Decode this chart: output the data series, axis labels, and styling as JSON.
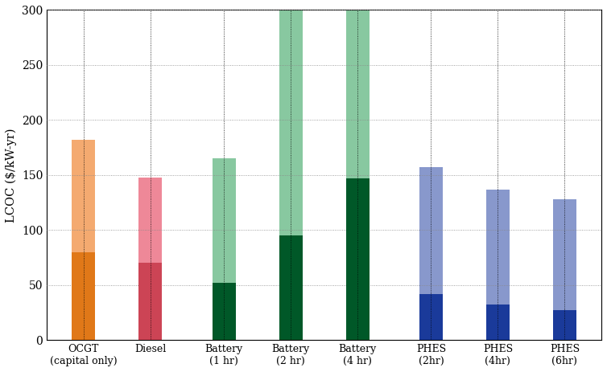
{
  "categories": [
    "OCGT\n(capital only)",
    "Diesel",
    "Battery\n(1 hr)",
    "Battery\n(2 hr)",
    "Battery\n(4 hr)",
    "PHES\n(2hr)",
    "PHES\n(4hr)",
    "PHES\n(6hr)"
  ],
  "dark_values": [
    80,
    70,
    52,
    95,
    147,
    42,
    32,
    27
  ],
  "light_values": [
    182,
    148,
    165,
    300,
    300,
    157,
    137,
    128
  ],
  "dark_colors": [
    "#e07818",
    "#cc4455",
    "#005828",
    "#005828",
    "#005828",
    "#1a3a9a",
    "#1a3a9a",
    "#1a3a9a"
  ],
  "light_colors": [
    "#f4aa70",
    "#ee8898",
    "#88c8a0",
    "#88c8a0",
    "#88c8a0",
    "#8898cc",
    "#8898cc",
    "#8898cc"
  ],
  "ylabel": "LCOC ($/kW-yr)",
  "ylim": [
    0,
    300
  ],
  "yticks": [
    0,
    50,
    100,
    150,
    200,
    250,
    300
  ],
  "background_color": "#ffffff",
  "grid_color": "#888888",
  "bar_width": 0.35,
  "figsize": [
    7.54,
    4.63
  ],
  "dpi": 100
}
